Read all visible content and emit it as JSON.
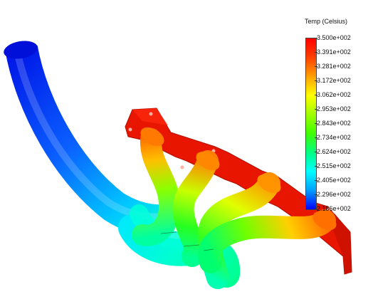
{
  "legend": {
    "title": "Temp (Celsius)",
    "gradient": [
      "#0000ff",
      "#00a0ff",
      "#00ffff",
      "#00ff80",
      "#40ff00",
      "#a0ff00",
      "#ffff00",
      "#ffa000",
      "#ff4000",
      "#ff0000"
    ],
    "ticks": [
      {
        "label": "3.500e+002"
      },
      {
        "label": "3.391e+002"
      },
      {
        "label": "3.281e+002"
      },
      {
        "label": "3.172e+002"
      },
      {
        "label": "3.062e+002"
      },
      {
        "label": "2.953e+002"
      },
      {
        "label": "2.843e+002"
      },
      {
        "label": "2.734e+002"
      },
      {
        "label": "2.624e+002"
      },
      {
        "label": "2.515e+002"
      },
      {
        "label": "2.405e+002"
      },
      {
        "label": "2.296e+002"
      },
      {
        "label": "2.186e+002"
      }
    ]
  },
  "model": {
    "icon": "exhaust-manifold-model",
    "flange_color": "#e81500"
  }
}
